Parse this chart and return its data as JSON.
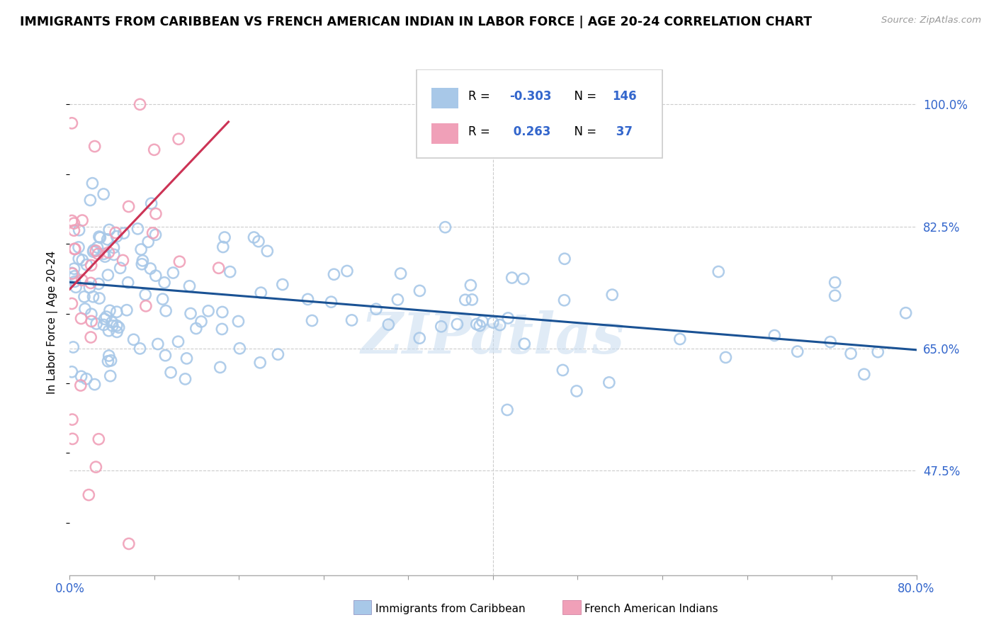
{
  "title": "IMMIGRANTS FROM CARIBBEAN VS FRENCH AMERICAN INDIAN IN LABOR FORCE | AGE 20-24 CORRELATION CHART",
  "source": "Source: ZipAtlas.com",
  "ylabel": "In Labor Force | Age 20-24",
  "xlim": [
    0.0,
    0.8
  ],
  "ylim": [
    0.325,
    1.05
  ],
  "xtick_positions": [
    0.0,
    0.08,
    0.16,
    0.24,
    0.32,
    0.4,
    0.48,
    0.56,
    0.64,
    0.72,
    0.8
  ],
  "xticklabels_show": [
    "0.0%",
    "",
    "",
    "",
    "",
    "",
    "",
    "",
    "",
    "",
    "80.0%"
  ],
  "ytick_positions": [
    1.0,
    0.825,
    0.65,
    0.475
  ],
  "ytick_labels": [
    "100.0%",
    "82.5%",
    "65.0%",
    "47.5%"
  ],
  "blue_R": -0.303,
  "blue_N": 146,
  "pink_R": 0.263,
  "pink_N": 37,
  "blue_color": "#A8C8E8",
  "pink_color": "#F0A0B8",
  "blue_line_color": "#1A5294",
  "pink_line_color": "#CC3355",
  "legend_blue_label": "Immigrants from Caribbean",
  "legend_pink_label": "French American Indians",
  "watermark": "ZIPatlas",
  "blue_trend_x": [
    0.0,
    0.8
  ],
  "blue_trend_y": [
    0.745,
    0.648
  ],
  "pink_trend_x": [
    0.0,
    0.15
  ],
  "pink_trend_y": [
    0.735,
    0.975
  ]
}
